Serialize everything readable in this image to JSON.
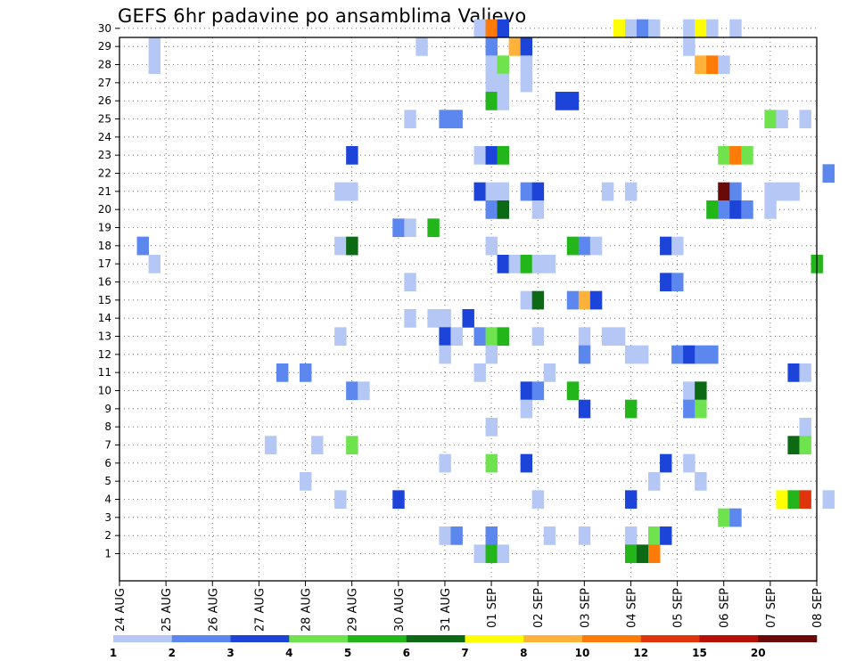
{
  "chart_data": {
    "type": "heatmap",
    "title": "GEFS 6hr padavine po ansamblima Valjevo",
    "xlabel": "",
    "ylabel": "",
    "y_ticks": [
      1,
      2,
      3,
      4,
      5,
      6,
      7,
      8,
      9,
      10,
      11,
      12,
      13,
      14,
      15,
      16,
      17,
      18,
      19,
      20,
      21,
      22,
      23,
      24,
      25,
      26,
      27,
      28,
      29,
      30
    ],
    "ylim": [
      0,
      30
    ],
    "x_tick_labels": [
      "24 AUG",
      "25 AUG",
      "26 AUG",
      "27 AUG",
      "28 AUG",
      "29 AUG",
      "30 AUG",
      "31 AUG",
      "01 SEP",
      "02 SEP",
      "03 SEP",
      "04 SEP",
      "05 SEP",
      "06 SEP",
      "07 SEP",
      "08 SEP"
    ],
    "time_step_hours": 6,
    "grid": true,
    "legend": {
      "placement": "bottom",
      "levels": [
        "1",
        "2",
        "3",
        "4",
        "5",
        "6",
        "7",
        "8",
        "10",
        "12",
        "15",
        "20"
      ],
      "colors": [
        "#b4c7f5",
        "#5b87ee",
        "#1c44d8",
        "#6ee34e",
        "#23b61b",
        "#0b6a13",
        "#ffff00",
        "#ffb23a",
        "#ff7b08",
        "#e0340c",
        "#b71107",
        "#6a0a08"
      ]
    },
    "cells": [
      {
        "member": 30,
        "step": 31,
        "level": 1
      },
      {
        "member": 30,
        "step": 32,
        "level": 9
      },
      {
        "member": 30,
        "step": 33,
        "level": 3
      },
      {
        "member": 30,
        "step": 43,
        "level": 7
      },
      {
        "member": 30,
        "step": 44,
        "level": 1
      },
      {
        "member": 30,
        "step": 45,
        "level": 2
      },
      {
        "member": 30,
        "step": 46,
        "level": 1
      },
      {
        "member": 30,
        "step": 49,
        "level": 1
      },
      {
        "member": 30,
        "step": 50,
        "level": 7
      },
      {
        "member": 30,
        "step": 51,
        "level": 1
      },
      {
        "member": 30,
        "step": 53,
        "level": 1
      },
      {
        "member": 29,
        "step": 3,
        "level": 1
      },
      {
        "member": 29,
        "step": 26,
        "level": 1
      },
      {
        "member": 29,
        "step": 32,
        "level": 2
      },
      {
        "member": 29,
        "step": 34,
        "level": 8
      },
      {
        "member": 29,
        "step": 35,
        "level": 3
      },
      {
        "member": 29,
        "step": 49,
        "level": 1
      },
      {
        "member": 28,
        "step": 3,
        "level": 1
      },
      {
        "member": 28,
        "step": 32,
        "level": 1
      },
      {
        "member": 28,
        "step": 33,
        "level": 4
      },
      {
        "member": 28,
        "step": 35,
        "level": 1
      },
      {
        "member": 28,
        "step": 50,
        "level": 8
      },
      {
        "member": 28,
        "step": 51,
        "level": 9
      },
      {
        "member": 28,
        "step": 52,
        "level": 1
      },
      {
        "member": 27,
        "step": 32,
        "level": 1
      },
      {
        "member": 27,
        "step": 33,
        "level": 1
      },
      {
        "member": 27,
        "step": 35,
        "level": 1
      },
      {
        "member": 26,
        "step": 32,
        "level": 5
      },
      {
        "member": 26,
        "step": 33,
        "level": 1
      },
      {
        "member": 26,
        "step": 38,
        "level": 3
      },
      {
        "member": 26,
        "step": 39,
        "level": 3
      },
      {
        "member": 25,
        "step": 25,
        "level": 1
      },
      {
        "member": 25,
        "step": 28,
        "level": 2
      },
      {
        "member": 25,
        "step": 29,
        "level": 2
      },
      {
        "member": 25,
        "step": 56,
        "level": 4
      },
      {
        "member": 25,
        "step": 57,
        "level": 1
      },
      {
        "member": 25,
        "step": 59,
        "level": 1
      },
      {
        "member": 23,
        "step": 20,
        "level": 3
      },
      {
        "member": 23,
        "step": 31,
        "level": 1
      },
      {
        "member": 23,
        "step": 32,
        "level": 3
      },
      {
        "member": 23,
        "step": 33,
        "level": 5
      },
      {
        "member": 23,
        "step": 52,
        "level": 4
      },
      {
        "member": 23,
        "step": 53,
        "level": 9
      },
      {
        "member": 23,
        "step": 54,
        "level": 4
      },
      {
        "member": 22,
        "step": 61,
        "level": 2
      },
      {
        "member": 21,
        "step": 19,
        "level": 1
      },
      {
        "member": 21,
        "step": 20,
        "level": 1
      },
      {
        "member": 21,
        "step": 31,
        "level": 3
      },
      {
        "member": 21,
        "step": 32,
        "level": 1
      },
      {
        "member": 21,
        "step": 33,
        "level": 1
      },
      {
        "member": 21,
        "step": 35,
        "level": 2
      },
      {
        "member": 21,
        "step": 36,
        "level": 3
      },
      {
        "member": 21,
        "step": 42,
        "level": 1
      },
      {
        "member": 21,
        "step": 44,
        "level": 1
      },
      {
        "member": 21,
        "step": 52,
        "level": 12
      },
      {
        "member": 21,
        "step": 53,
        "level": 2
      },
      {
        "member": 21,
        "step": 56,
        "level": 1
      },
      {
        "member": 21,
        "step": 57,
        "level": 1
      },
      {
        "member": 21,
        "step": 58,
        "level": 1
      },
      {
        "member": 20,
        "step": 32,
        "level": 2
      },
      {
        "member": 20,
        "step": 33,
        "level": 6
      },
      {
        "member": 20,
        "step": 36,
        "level": 1
      },
      {
        "member": 20,
        "step": 51,
        "level": 5
      },
      {
        "member": 20,
        "step": 52,
        "level": 2
      },
      {
        "member": 20,
        "step": 53,
        "level": 3
      },
      {
        "member": 20,
        "step": 54,
        "level": 2
      },
      {
        "member": 20,
        "step": 56,
        "level": 1
      },
      {
        "member": 19,
        "step": 24,
        "level": 2
      },
      {
        "member": 19,
        "step": 25,
        "level": 1
      },
      {
        "member": 19,
        "step": 27,
        "level": 5
      },
      {
        "member": 18,
        "step": 2,
        "level": 2
      },
      {
        "member": 18,
        "step": 19,
        "level": 1
      },
      {
        "member": 18,
        "step": 20,
        "level": 6
      },
      {
        "member": 18,
        "step": 32,
        "level": 1
      },
      {
        "member": 18,
        "step": 39,
        "level": 5
      },
      {
        "member": 18,
        "step": 40,
        "level": 2
      },
      {
        "member": 18,
        "step": 41,
        "level": 1
      },
      {
        "member": 18,
        "step": 47,
        "level": 3
      },
      {
        "member": 18,
        "step": 48,
        "level": 1
      },
      {
        "member": 17,
        "step": 3,
        "level": 1
      },
      {
        "member": 17,
        "step": 33,
        "level": 3
      },
      {
        "member": 17,
        "step": 34,
        "level": 1
      },
      {
        "member": 17,
        "step": 35,
        "level": 5
      },
      {
        "member": 17,
        "step": 36,
        "level": 1
      },
      {
        "member": 17,
        "step": 37,
        "level": 1
      },
      {
        "member": 17,
        "step": 60,
        "level": 5
      },
      {
        "member": 16,
        "step": 25,
        "level": 1
      },
      {
        "member": 16,
        "step": 47,
        "level": 3
      },
      {
        "member": 16,
        "step": 48,
        "level": 2
      },
      {
        "member": 15,
        "step": 35,
        "level": 1
      },
      {
        "member": 15,
        "step": 36,
        "level": 6
      },
      {
        "member": 15,
        "step": 39,
        "level": 2
      },
      {
        "member": 15,
        "step": 40,
        "level": 8
      },
      {
        "member": 15,
        "step": 41,
        "level": 3
      },
      {
        "member": 14,
        "step": 25,
        "level": 1
      },
      {
        "member": 14,
        "step": 27,
        "level": 1
      },
      {
        "member": 14,
        "step": 28,
        "level": 1
      },
      {
        "member": 14,
        "step": 30,
        "level": 3
      },
      {
        "member": 13,
        "step": 19,
        "level": 1
      },
      {
        "member": 13,
        "step": 28,
        "level": 3
      },
      {
        "member": 13,
        "step": 29,
        "level": 1
      },
      {
        "member": 13,
        "step": 31,
        "level": 2
      },
      {
        "member": 13,
        "step": 32,
        "level": 4
      },
      {
        "member": 13,
        "step": 33,
        "level": 5
      },
      {
        "member": 13,
        "step": 36,
        "level": 1
      },
      {
        "member": 13,
        "step": 40,
        "level": 1
      },
      {
        "member": 13,
        "step": 42,
        "level": 1
      },
      {
        "member": 13,
        "step": 43,
        "level": 1
      },
      {
        "member": 12,
        "step": 28,
        "level": 1
      },
      {
        "member": 12,
        "step": 32,
        "level": 1
      },
      {
        "member": 12,
        "step": 40,
        "level": 2
      },
      {
        "member": 12,
        "step": 44,
        "level": 1
      },
      {
        "member": 12,
        "step": 45,
        "level": 1
      },
      {
        "member": 12,
        "step": 48,
        "level": 2
      },
      {
        "member": 12,
        "step": 49,
        "level": 3
      },
      {
        "member": 12,
        "step": 50,
        "level": 2
      },
      {
        "member": 12,
        "step": 51,
        "level": 2
      },
      {
        "member": 11,
        "step": 14,
        "level": 2
      },
      {
        "member": 11,
        "step": 16,
        "level": 2
      },
      {
        "member": 11,
        "step": 31,
        "level": 1
      },
      {
        "member": 11,
        "step": 37,
        "level": 1
      },
      {
        "member": 11,
        "step": 58,
        "level": 3
      },
      {
        "member": 11,
        "step": 59,
        "level": 1
      },
      {
        "member": 10,
        "step": 20,
        "level": 2
      },
      {
        "member": 10,
        "step": 21,
        "level": 1
      },
      {
        "member": 10,
        "step": 35,
        "level": 3
      },
      {
        "member": 10,
        "step": 36,
        "level": 2
      },
      {
        "member": 10,
        "step": 39,
        "level": 5
      },
      {
        "member": 10,
        "step": 49,
        "level": 1
      },
      {
        "member": 10,
        "step": 50,
        "level": 6
      },
      {
        "member": 9,
        "step": 35,
        "level": 1
      },
      {
        "member": 9,
        "step": 40,
        "level": 3
      },
      {
        "member": 9,
        "step": 44,
        "level": 5
      },
      {
        "member": 9,
        "step": 49,
        "level": 2
      },
      {
        "member": 9,
        "step": 50,
        "level": 4
      },
      {
        "member": 8,
        "step": 32,
        "level": 1
      },
      {
        "member": 8,
        "step": 59,
        "level": 1
      },
      {
        "member": 7,
        "step": 13,
        "level": 1
      },
      {
        "member": 7,
        "step": 17,
        "level": 1
      },
      {
        "member": 7,
        "step": 20,
        "level": 4
      },
      {
        "member": 7,
        "step": 58,
        "level": 6
      },
      {
        "member": 7,
        "step": 59,
        "level": 4
      },
      {
        "member": 6,
        "step": 28,
        "level": 1
      },
      {
        "member": 6,
        "step": 32,
        "level": 4
      },
      {
        "member": 6,
        "step": 35,
        "level": 3
      },
      {
        "member": 6,
        "step": 47,
        "level": 3
      },
      {
        "member": 6,
        "step": 49,
        "level": 1
      },
      {
        "member": 5,
        "step": 16,
        "level": 1
      },
      {
        "member": 5,
        "step": 46,
        "level": 1
      },
      {
        "member": 5,
        "step": 50,
        "level": 1
      },
      {
        "member": 4,
        "step": 19,
        "level": 1
      },
      {
        "member": 4,
        "step": 24,
        "level": 3
      },
      {
        "member": 4,
        "step": 36,
        "level": 1
      },
      {
        "member": 4,
        "step": 44,
        "level": 3
      },
      {
        "member": 4,
        "step": 57,
        "level": 7
      },
      {
        "member": 4,
        "step": 58,
        "level": 5
      },
      {
        "member": 4,
        "step": 59,
        "level": 10
      },
      {
        "member": 4,
        "step": 61,
        "level": 1
      },
      {
        "member": 3,
        "step": 52,
        "level": 4
      },
      {
        "member": 3,
        "step": 53,
        "level": 2
      },
      {
        "member": 2,
        "step": 28,
        "level": 1
      },
      {
        "member": 2,
        "step": 29,
        "level": 2
      },
      {
        "member": 2,
        "step": 32,
        "level": 2
      },
      {
        "member": 2,
        "step": 37,
        "level": 1
      },
      {
        "member": 2,
        "step": 40,
        "level": 1
      },
      {
        "member": 2,
        "step": 44,
        "level": 1
      },
      {
        "member": 2,
        "step": 46,
        "level": 4
      },
      {
        "member": 2,
        "step": 47,
        "level": 3
      },
      {
        "member": 1,
        "step": 31,
        "level": 1
      },
      {
        "member": 1,
        "step": 32,
        "level": 5
      },
      {
        "member": 1,
        "step": 33,
        "level": 1
      },
      {
        "member": 1,
        "step": 44,
        "level": 5
      },
      {
        "member": 1,
        "step": 45,
        "level": 6
      },
      {
        "member": 1,
        "step": 46,
        "level": 9
      }
    ]
  }
}
